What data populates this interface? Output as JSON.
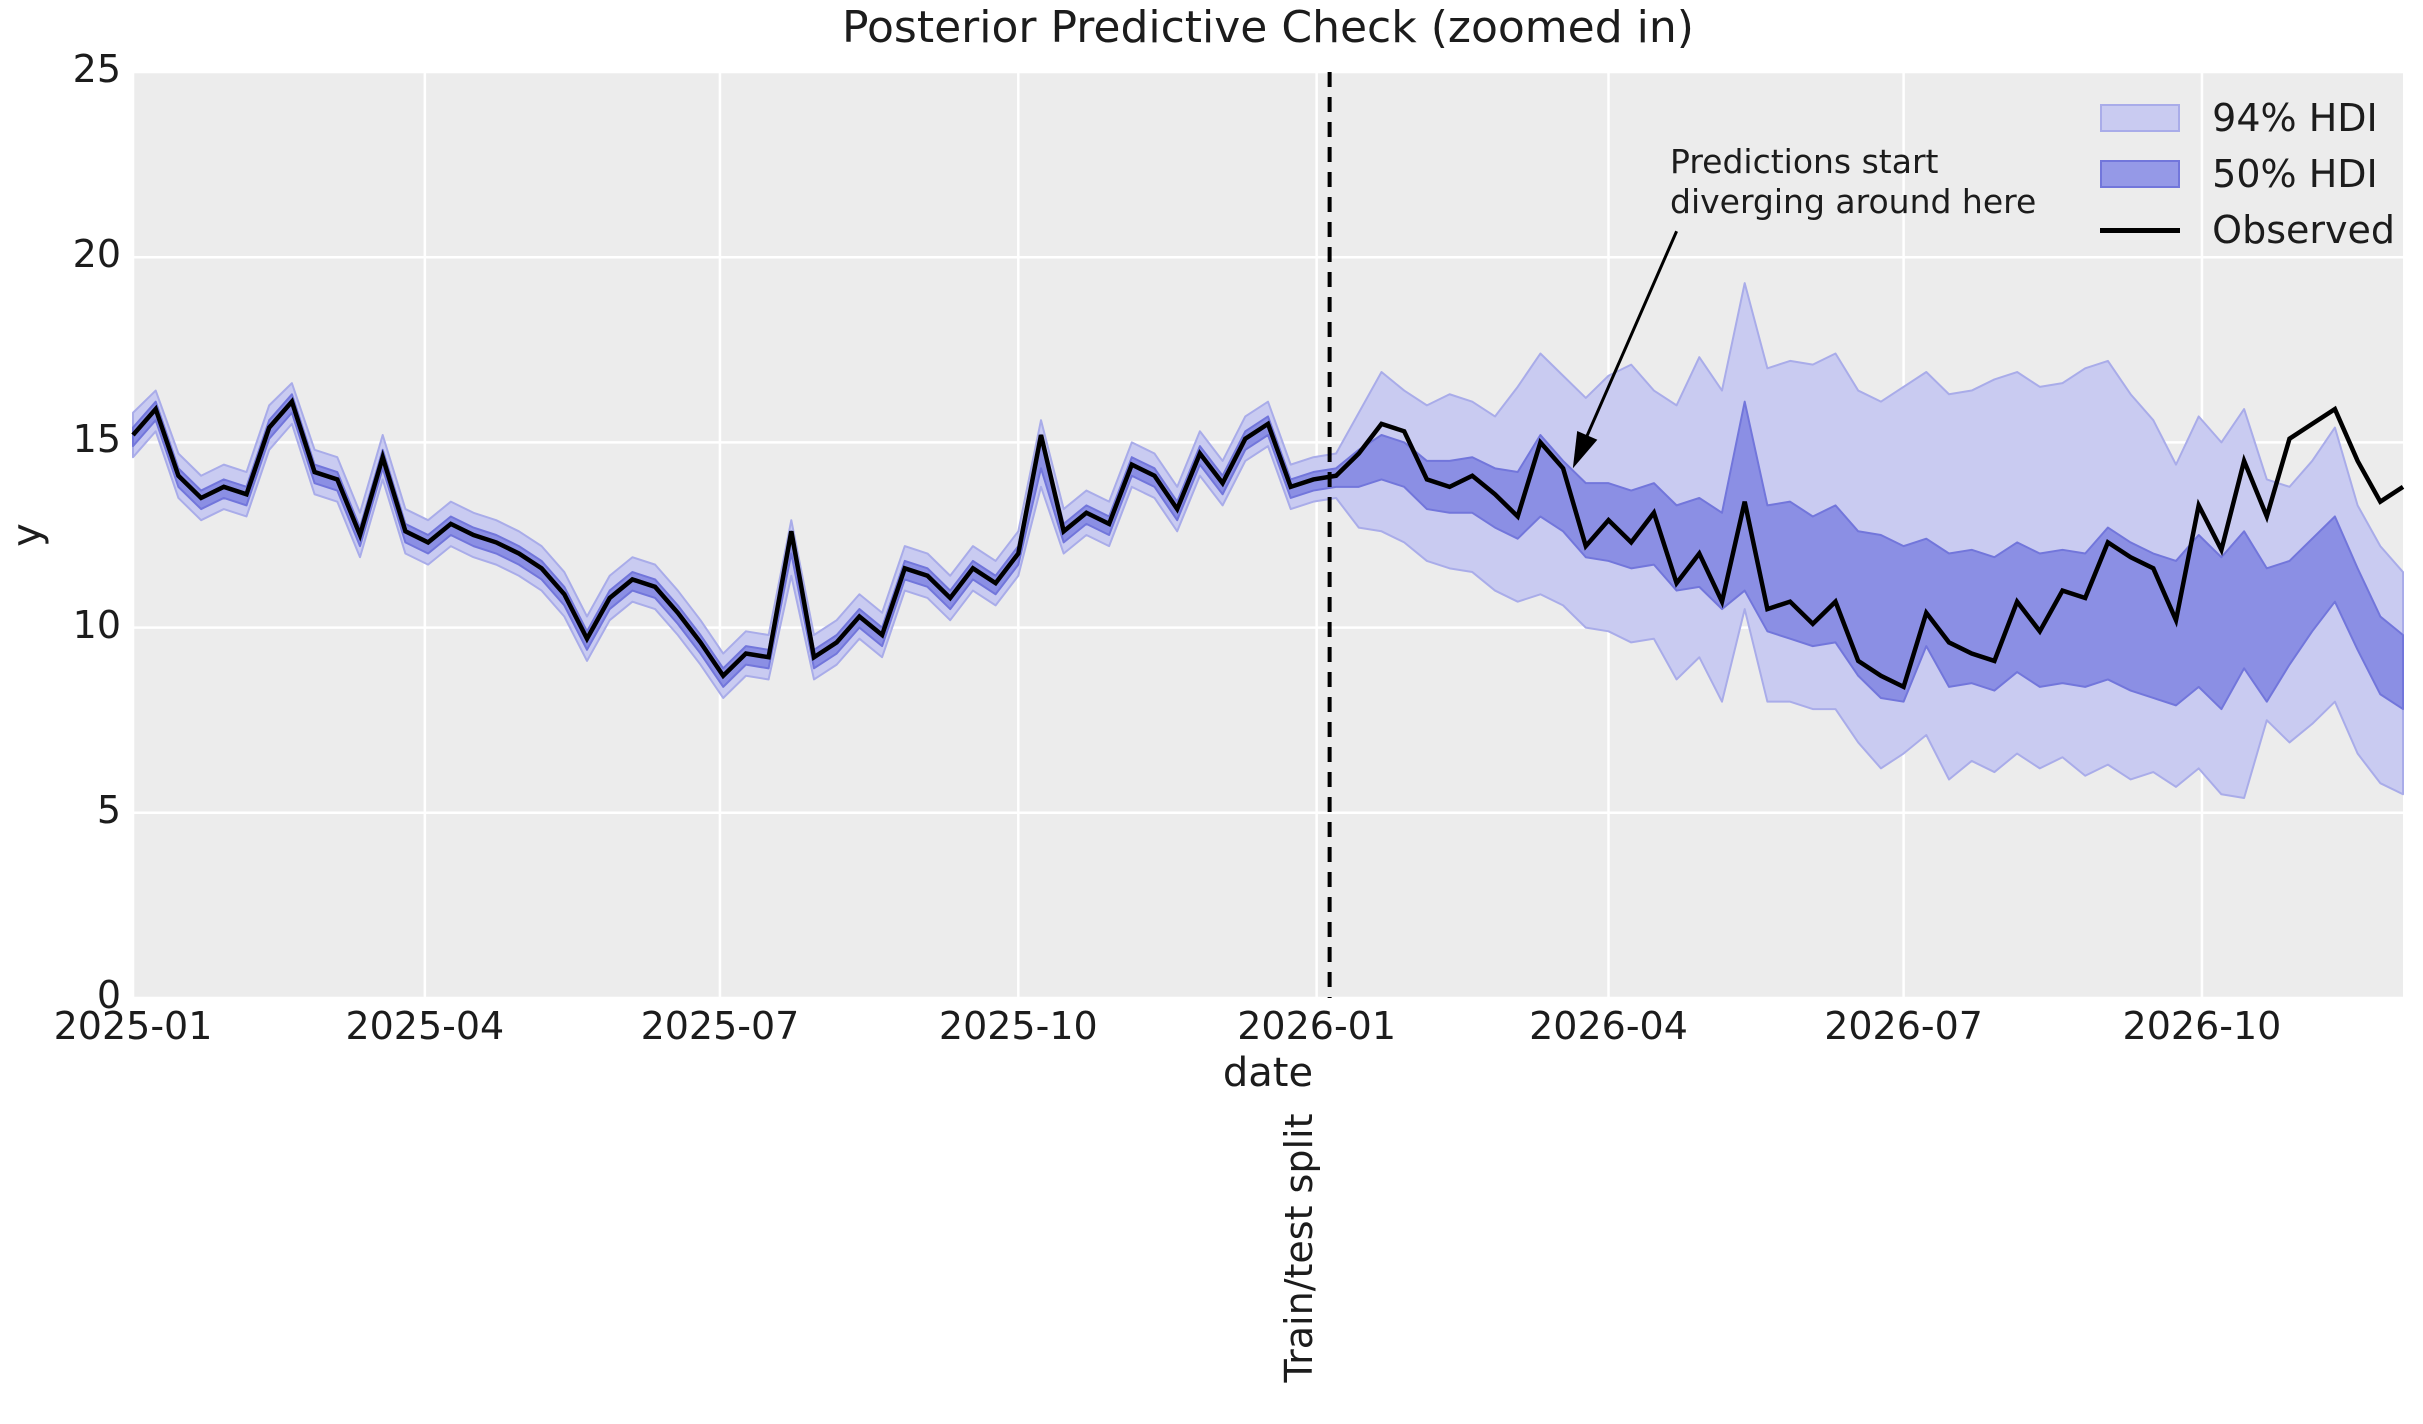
{
  "title": "Posterior Predictive Check (zoomed in)",
  "xlabel": "date",
  "ylabel": "y",
  "split_label": "Train/test split",
  "annotation": {
    "line1": "Predictions start",
    "line2": "diverging around here",
    "tip_day": 444,
    "tip_value": 14.3,
    "tail_day": 476,
    "tail_value": 20.7
  },
  "colors": {
    "figure_bg": "#ffffff",
    "plot_bg": "#ececec",
    "grid": "#ffffff",
    "text": "#1c1c1c",
    "observed": "#000000",
    "hdi94_fill": "#c9cbf1",
    "hdi94_edge": "#a9ace9",
    "hdi50_fill": "#8b8fe4",
    "hdi50_edge": "#7276db",
    "split_line": "#000000"
  },
  "legend": [
    {
      "label": "94% HDI",
      "type": "patch",
      "fill": "#c9cbf1",
      "edge": "#a9ace9"
    },
    {
      "label": "50% HDI",
      "type": "patch",
      "fill": "#9599e7",
      "edge": "#7276db"
    },
    {
      "label": "Observed",
      "type": "line",
      "color": "#000000"
    }
  ],
  "chart_data": {
    "type": "line",
    "title": "Posterior Predictive Check (zoomed in)",
    "xlabel": "date",
    "ylabel": "y",
    "x_start_date": "2025-01-01",
    "x_step_days": 7,
    "xlim_days": [
      0,
      700
    ],
    "ylim": [
      0,
      25
    ],
    "yticks": [
      0,
      5,
      10,
      15,
      20,
      25
    ],
    "xticks": [
      {
        "label": "2025-01",
        "day": 0
      },
      {
        "label": "2025-04",
        "day": 90
      },
      {
        "label": "2025-07",
        "day": 181
      },
      {
        "label": "2025-10",
        "day": 273
      },
      {
        "label": "2026-01",
        "day": 365
      },
      {
        "label": "2026-04",
        "day": 455
      },
      {
        "label": "2026-07",
        "day": 546
      },
      {
        "label": "2026-10",
        "day": 638
      }
    ],
    "split_day": 369,
    "grid": true,
    "legend_position": "upper right",
    "series": [
      {
        "name": "Observed",
        "role": "line",
        "color": "#000000",
        "values": [
          15.2,
          15.9,
          14.1,
          13.5,
          13.8,
          13.6,
          15.4,
          16.1,
          14.2,
          14.0,
          12.5,
          14.6,
          12.6,
          12.3,
          12.8,
          12.5,
          12.3,
          12.0,
          11.6,
          10.9,
          9.7,
          10.8,
          11.3,
          11.1,
          10.4,
          9.6,
          8.7,
          9.3,
          9.2,
          12.6,
          9.2,
          9.6,
          10.3,
          9.8,
          11.6,
          11.4,
          10.8,
          11.6,
          11.2,
          12.0,
          15.2,
          12.6,
          13.1,
          12.8,
          14.4,
          14.1,
          13.2,
          14.7,
          13.9,
          15.1,
          15.5,
          13.8,
          14.0,
          14.1,
          14.7,
          15.5,
          15.3,
          14.0,
          13.8,
          14.1,
          13.6,
          13.0,
          15.0,
          14.3,
          12.2,
          12.9,
          12.3,
          13.1,
          11.2,
          12.0,
          10.7,
          13.4,
          10.5,
          10.7,
          10.1,
          10.7,
          9.1,
          8.7,
          8.4,
          10.4,
          9.6,
          9.3,
          9.1,
          10.7,
          9.9,
          11.0,
          10.8,
          12.3,
          11.9,
          11.6,
          10.2,
          13.3,
          12.1,
          14.5,
          13.0,
          15.1,
          15.5,
          15.9,
          14.5,
          13.4,
          13.8
        ]
      },
      {
        "name": "94% HDI",
        "role": "band",
        "fill": "#c9cbf1",
        "edge": "#a9ace9",
        "upper": [
          15.8,
          16.4,
          14.7,
          14.1,
          14.4,
          14.2,
          16.0,
          16.6,
          14.8,
          14.6,
          13.1,
          15.2,
          13.2,
          12.9,
          13.4,
          13.1,
          12.9,
          12.6,
          12.2,
          11.5,
          10.3,
          11.4,
          11.9,
          11.7,
          11.0,
          10.2,
          9.3,
          9.9,
          9.8,
          12.9,
          9.8,
          10.2,
          10.9,
          10.4,
          12.2,
          12.0,
          11.4,
          12.2,
          11.8,
          12.6,
          15.6,
          13.2,
          13.7,
          13.4,
          15.0,
          14.7,
          13.8,
          15.3,
          14.5,
          15.7,
          16.1,
          14.4,
          14.6,
          14.7,
          15.8,
          16.9,
          16.4,
          16.0,
          16.3,
          16.1,
          15.7,
          16.5,
          17.4,
          16.8,
          16.2,
          16.8,
          17.1,
          16.4,
          16.0,
          17.3,
          16.4,
          19.3,
          17.0,
          17.2,
          17.1,
          17.4,
          16.4,
          16.1,
          16.5,
          16.9,
          16.3,
          16.4,
          16.7,
          16.9,
          16.5,
          16.6,
          17.0,
          17.2,
          16.3,
          15.6,
          14.4,
          15.7,
          15.0,
          15.9,
          14.0,
          13.8,
          14.5,
          15.4,
          13.3,
          12.2,
          11.5
        ],
        "lower": [
          14.6,
          15.3,
          13.5,
          12.9,
          13.2,
          13.0,
          14.8,
          15.5,
          13.6,
          13.4,
          11.9,
          14.0,
          12.0,
          11.7,
          12.2,
          11.9,
          11.7,
          11.4,
          11.0,
          10.3,
          9.1,
          10.2,
          10.7,
          10.5,
          9.8,
          9.0,
          8.1,
          8.7,
          8.6,
          11.4,
          8.6,
          9.0,
          9.7,
          9.2,
          11.0,
          10.8,
          10.2,
          11.0,
          10.6,
          11.4,
          13.8,
          12.0,
          12.5,
          12.2,
          13.8,
          13.5,
          12.6,
          14.1,
          13.3,
          14.5,
          14.9,
          13.2,
          13.4,
          13.5,
          12.7,
          12.6,
          12.3,
          11.8,
          11.6,
          11.5,
          11.0,
          10.7,
          10.9,
          10.6,
          10.0,
          9.9,
          9.6,
          9.7,
          8.6,
          9.2,
          8.0,
          10.5,
          8.0,
          8.0,
          7.8,
          7.8,
          6.9,
          6.2,
          6.6,
          7.1,
          5.9,
          6.4,
          6.1,
          6.6,
          6.2,
          6.5,
          6.0,
          6.3,
          5.9,
          6.1,
          5.7,
          6.2,
          5.5,
          5.4,
          7.5,
          6.9,
          7.4,
          8.0,
          6.6,
          5.8,
          5.5
        ]
      },
      {
        "name": "50% HDI",
        "role": "band",
        "fill": "#8b8fe4",
        "edge": "#7276db",
        "upper": [
          15.4,
          16.1,
          14.3,
          13.7,
          14.0,
          13.8,
          15.6,
          16.3,
          14.4,
          14.2,
          12.7,
          14.8,
          12.8,
          12.5,
          13.0,
          12.7,
          12.5,
          12.2,
          11.8,
          11.1,
          9.9,
          11.0,
          11.5,
          11.3,
          10.6,
          9.8,
          8.9,
          9.5,
          9.4,
          12.6,
          9.4,
          9.8,
          10.5,
          10.0,
          11.8,
          11.6,
          11.0,
          11.8,
          11.4,
          12.2,
          15.2,
          12.8,
          13.3,
          13.0,
          14.6,
          14.3,
          13.4,
          14.9,
          14.1,
          15.3,
          15.7,
          14.0,
          14.2,
          14.3,
          14.8,
          15.2,
          15.0,
          14.5,
          14.5,
          14.6,
          14.3,
          14.2,
          15.2,
          14.5,
          13.9,
          13.9,
          13.7,
          13.9,
          13.3,
          13.5,
          13.1,
          16.1,
          13.3,
          13.4,
          13.0,
          13.3,
          12.6,
          12.5,
          12.2,
          12.4,
          12.0,
          12.1,
          11.9,
          12.3,
          12.0,
          12.1,
          12.0,
          12.7,
          12.3,
          12.0,
          11.8,
          12.5,
          11.9,
          12.6,
          11.6,
          11.8,
          12.4,
          13.0,
          11.6,
          10.3,
          9.8
        ],
        "lower": [
          14.9,
          15.6,
          13.8,
          13.2,
          13.5,
          13.3,
          15.1,
          15.8,
          13.9,
          13.7,
          12.2,
          14.3,
          12.3,
          12.0,
          12.5,
          12.2,
          12.0,
          11.7,
          11.3,
          10.6,
          9.4,
          10.5,
          11.0,
          10.8,
          10.1,
          9.3,
          8.4,
          9.0,
          8.9,
          12.0,
          8.9,
          9.3,
          10.0,
          9.5,
          11.3,
          11.1,
          10.5,
          11.3,
          10.9,
          11.7,
          14.3,
          12.3,
          12.8,
          12.5,
          14.1,
          13.8,
          12.9,
          14.4,
          13.6,
          14.8,
          15.2,
          13.5,
          13.7,
          13.8,
          13.8,
          14.0,
          13.8,
          13.2,
          13.1,
          13.1,
          12.7,
          12.4,
          13.0,
          12.6,
          11.9,
          11.8,
          11.6,
          11.7,
          11.0,
          11.1,
          10.5,
          11.0,
          9.9,
          9.7,
          9.5,
          9.6,
          8.7,
          8.1,
          8.0,
          9.5,
          8.4,
          8.5,
          8.3,
          8.8,
          8.4,
          8.5,
          8.4,
          8.6,
          8.3,
          8.1,
          7.9,
          8.4,
          7.8,
          8.9,
          8.0,
          9.0,
          9.9,
          10.7,
          9.4,
          8.2,
          7.8
        ]
      }
    ]
  }
}
